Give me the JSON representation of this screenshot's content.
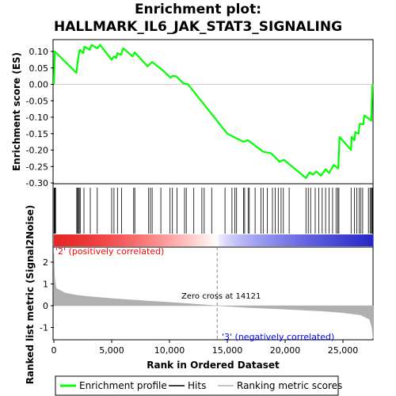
{
  "chart_data": {
    "type": "line",
    "title_line1": "Enrichment plot:",
    "title_line2": "HALLMARK_IL6_JAK_STAT3_SIGNALING",
    "xlabel": "Rank in Ordered Dataset",
    "es_ylabel": "Enrichment score (ES)",
    "metric_ylabel": "Ranked list metric (Signal2Noise)",
    "xlim": [
      0,
      27600
    ],
    "es_ylim": [
      -0.3,
      0.12
    ],
    "metric_ylim": [
      -1.6,
      2.6
    ],
    "x_ticks": [
      0,
      5000,
      10000,
      15000,
      20000,
      25000
    ],
    "x_tick_labels": [
      "0",
      "5,000",
      "10,000",
      "15,000",
      "20,000",
      "25,000"
    ],
    "es_ticks": [
      0.1,
      0.05,
      0.0,
      -0.05,
      -0.1,
      -0.15,
      -0.2,
      -0.25,
      -0.3
    ],
    "es_tick_labels": [
      "0.10",
      "0.05",
      "0.00",
      "-0.05",
      "-0.10",
      "-0.15",
      "-0.20",
      "-0.25",
      "-0.30"
    ],
    "metric_ticks": [
      2,
      1,
      0,
      -1
    ],
    "metric_tick_labels": [
      "2",
      "1",
      "0",
      "-1"
    ],
    "zero_cross": 14121,
    "zero_cross_label": "Zero cross at 14121",
    "pos_label": "'2' (positively correlated)",
    "neg_label": "'3' (negatively correlated)",
    "colors": {
      "es_line": "#00ff00",
      "pos_text": "#ff0000",
      "neg_text": "#0000ff",
      "metric_fill": "#b0b0b0",
      "hit": "#000000"
    },
    "series": [
      {
        "name": "Enrichment profile",
        "points": [
          [
            0,
            0.0
          ],
          [
            40,
            0.05
          ],
          [
            80,
            0.1
          ],
          [
            1950,
            0.035
          ],
          [
            2050,
            0.065
          ],
          [
            2150,
            0.09
          ],
          [
            2250,
            0.105
          ],
          [
            2550,
            0.095
          ],
          [
            2650,
            0.115
          ],
          [
            3100,
            0.105
          ],
          [
            3250,
            0.12
          ],
          [
            3750,
            0.11
          ],
          [
            4000,
            0.12
          ],
          [
            5000,
            0.075
          ],
          [
            5200,
            0.085
          ],
          [
            5400,
            0.08
          ],
          [
            5500,
            0.095
          ],
          [
            5800,
            0.09
          ],
          [
            6000,
            0.11
          ],
          [
            6800,
            0.085
          ],
          [
            7000,
            0.097
          ],
          [
            8100,
            0.055
          ],
          [
            8500,
            0.068
          ],
          [
            9500,
            0.04
          ],
          [
            10100,
            0.02
          ],
          [
            10250,
            0.026
          ],
          [
            10600,
            0.024
          ],
          [
            11200,
            0.003
          ],
          [
            11600,
            0.0
          ],
          [
            15000,
            -0.15
          ],
          [
            16400,
            -0.175
          ],
          [
            16800,
            -0.17
          ],
          [
            18100,
            -0.205
          ],
          [
            18800,
            -0.21
          ],
          [
            19500,
            -0.235
          ],
          [
            19900,
            -0.23
          ],
          [
            21800,
            -0.285
          ],
          [
            22100,
            -0.268
          ],
          [
            22400,
            -0.275
          ],
          [
            22700,
            -0.265
          ],
          [
            23100,
            -0.278
          ],
          [
            23500,
            -0.258
          ],
          [
            23800,
            -0.27
          ],
          [
            24200,
            -0.245
          ],
          [
            24600,
            -0.256
          ],
          [
            24700,
            -0.16
          ],
          [
            25700,
            -0.2
          ],
          [
            25750,
            -0.16
          ],
          [
            26000,
            -0.17
          ],
          [
            26050,
            -0.145
          ],
          [
            26350,
            -0.15
          ],
          [
            26450,
            -0.12
          ],
          [
            26750,
            -0.122
          ],
          [
            26850,
            -0.095
          ],
          [
            27450,
            -0.11
          ],
          [
            27500,
            -0.05
          ],
          [
            27550,
            0.0
          ]
        ]
      }
    ],
    "hits": [
      20,
      60,
      110,
      150,
      1980,
      2050,
      2120,
      2200,
      2280,
      2600,
      3150,
      3750,
      5000,
      5200,
      5500,
      5850,
      6900,
      7000,
      8200,
      8350,
      8500,
      9250,
      10050,
      10250,
      10650,
      11300,
      11450,
      12100,
      12800,
      13000,
      13650,
      14800,
      15400,
      15650,
      15800,
      16400,
      16500,
      16800,
      16900,
      17400,
      17900,
      18100,
      18450,
      18900,
      19150,
      19400,
      19650,
      19850,
      20350,
      21800,
      22000,
      22200,
      22600,
      22900,
      23200,
      23500,
      23800,
      24100,
      24400,
      24550,
      24650,
      25700,
      26000,
      26200,
      26400,
      26550,
      26700,
      27200,
      27350,
      27450,
      27520,
      27560
    ],
    "metric_profile": [
      [
        0,
        2.4
      ],
      [
        60,
        1.3
      ],
      [
        200,
        0.8
      ],
      [
        1000,
        0.58
      ],
      [
        2000,
        0.48
      ],
      [
        3000,
        0.42
      ],
      [
        5000,
        0.33
      ],
      [
        8000,
        0.22
      ],
      [
        11000,
        0.12
      ],
      [
        14121,
        0.0
      ],
      [
        17000,
        -0.09
      ],
      [
        20000,
        -0.16
      ],
      [
        23000,
        -0.24
      ],
      [
        25000,
        -0.32
      ],
      [
        26500,
        -0.42
      ],
      [
        27300,
        -0.62
      ],
      [
        27500,
        -1.0
      ],
      [
        27600,
        -1.5
      ]
    ],
    "legend": [
      {
        "label": "Enrichment profile",
        "type": "line",
        "color": "#00ff00"
      },
      {
        "label": "Hits",
        "type": "line",
        "color": "#000000"
      },
      {
        "label": "Ranking metric scores",
        "type": "line",
        "color": "#b0b0b0"
      }
    ]
  }
}
